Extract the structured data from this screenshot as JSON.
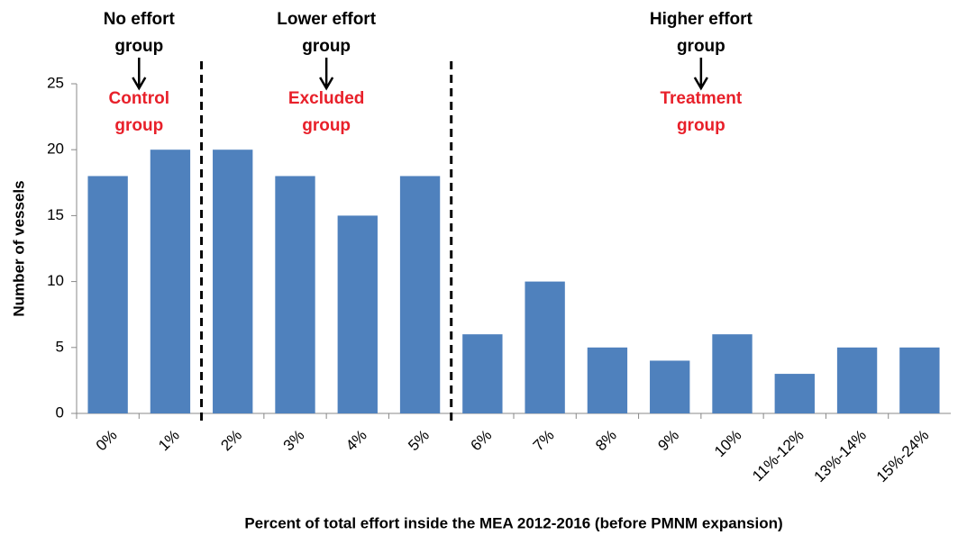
{
  "chart_data": {
    "type": "bar",
    "x_label": "Percent of total effort inside the MEA 2012-2016 (before PMNM expansion)",
    "y_label": "Number of vessels",
    "categories": [
      "0%",
      "1%",
      "2%",
      "3%",
      "4%",
      "5%",
      "6%",
      "7%",
      "8%",
      "9%",
      "10%",
      "11%-12%",
      "13%-14%",
      "15%-24%"
    ],
    "values": [
      18,
      20,
      20,
      18,
      15,
      18,
      6,
      10,
      5,
      4,
      6,
      3,
      5,
      5
    ],
    "color": "#4f81bd",
    "ylim": [
      0,
      25
    ],
    "yticks": [
      0,
      5,
      10,
      15,
      20,
      25
    ],
    "annotations": [
      {
        "top": [
          "No effort",
          "group"
        ],
        "label": [
          "Control",
          "group"
        ]
      },
      {
        "top": [
          "Lower effort",
          "group"
        ],
        "label": [
          "Excluded",
          "group"
        ]
      },
      {
        "top": [
          "Higher effort",
          "group"
        ],
        "label": [
          "Treatment",
          "group"
        ]
      }
    ]
  }
}
